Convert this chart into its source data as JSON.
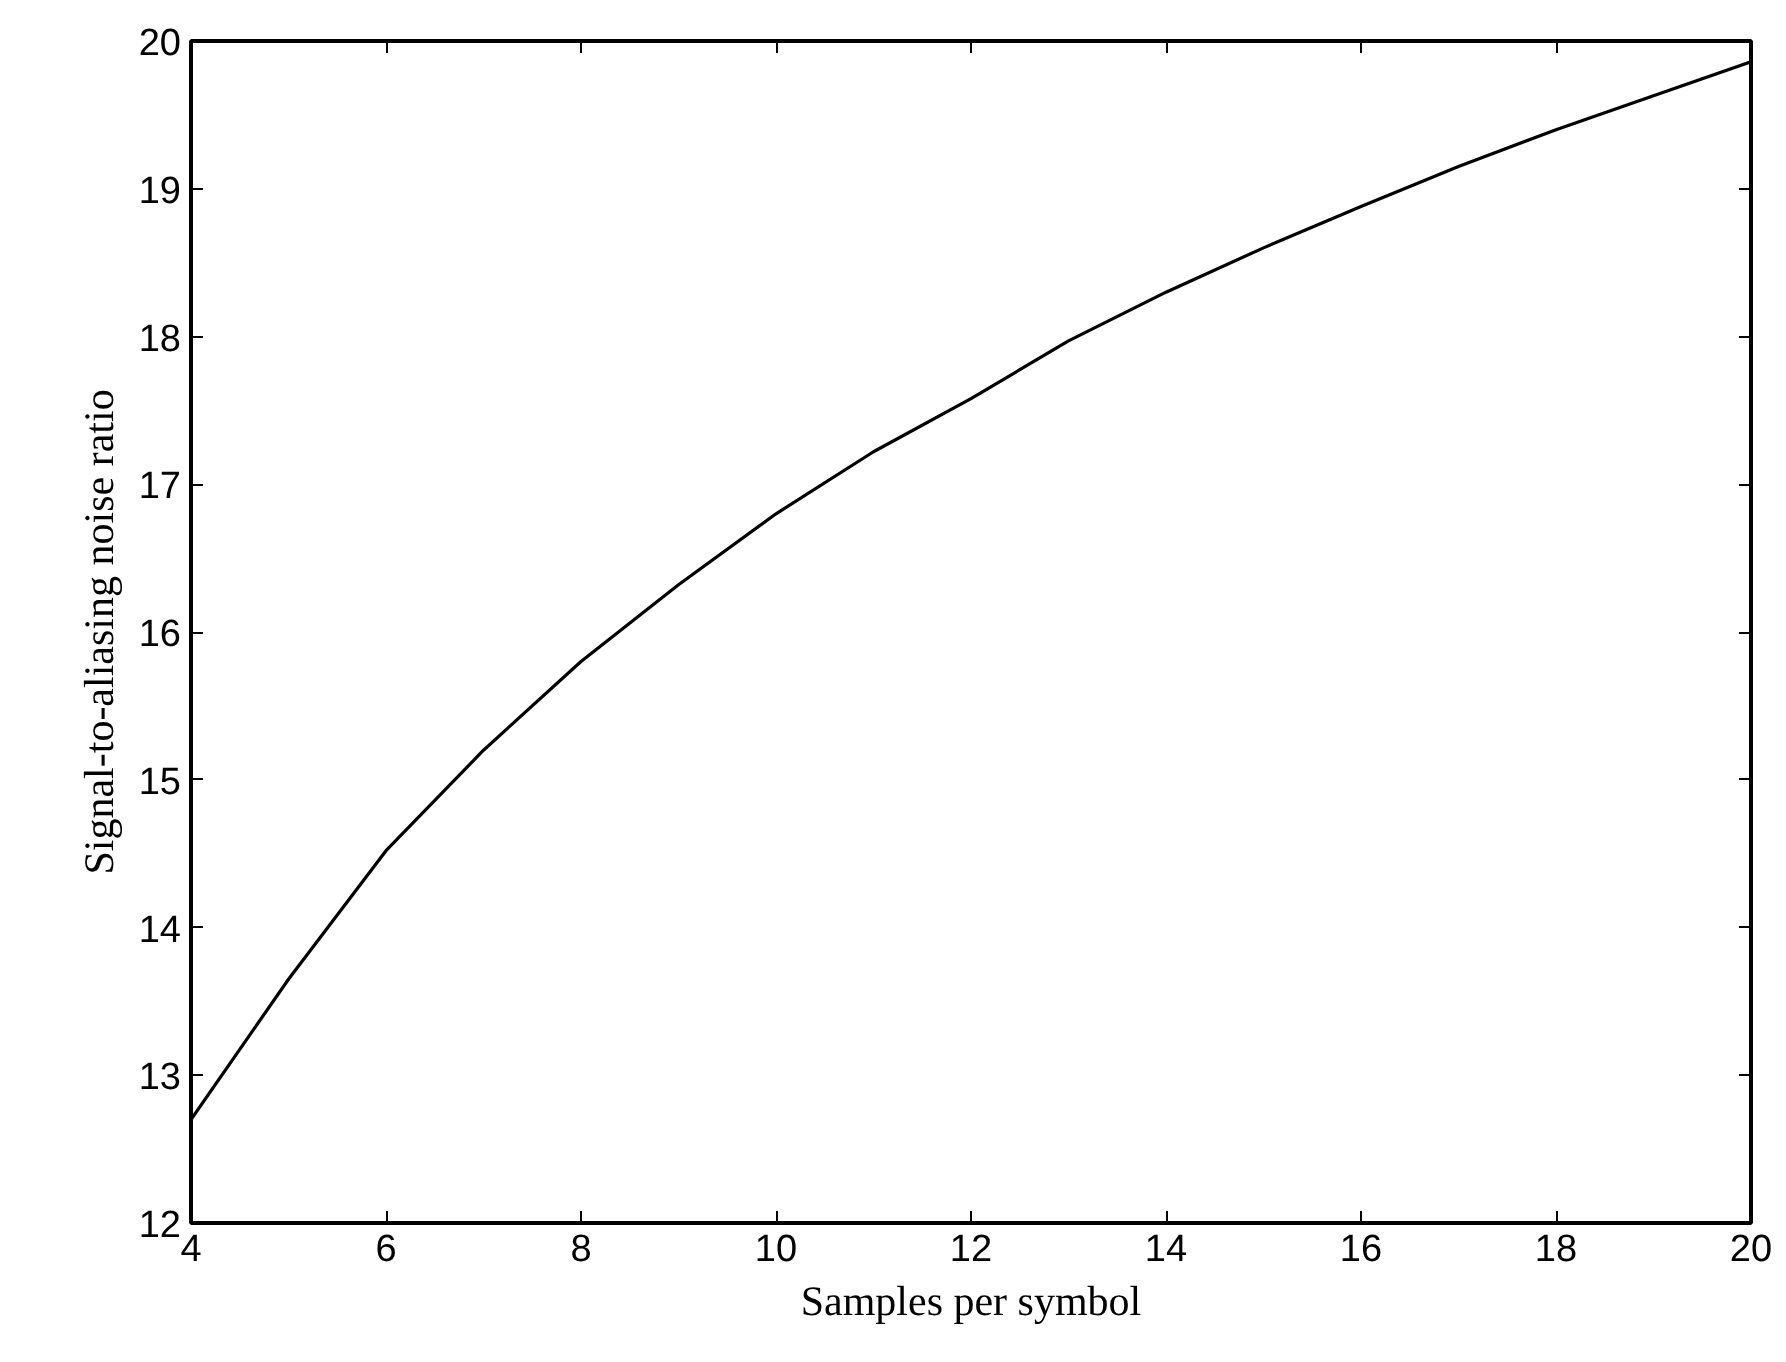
{
  "chart_data": {
    "type": "line",
    "xlabel": "Samples per symbol",
    "ylabel": "Signal-to-aliasing noise ratio",
    "x": [
      4,
      5,
      6,
      7,
      8,
      9,
      10,
      11,
      12,
      13,
      14,
      15,
      16,
      17,
      18,
      19,
      20
    ],
    "series": [
      {
        "color": "#000000",
        "values": [
          12.7,
          13.65,
          14.52,
          15.2,
          15.8,
          16.32,
          16.8,
          17.22,
          17.58,
          17.97,
          18.3,
          18.6,
          18.88,
          19.15,
          19.4,
          19.63,
          19.86
        ]
      }
    ],
    "xlim": [
      4,
      20
    ],
    "ylim": [
      12,
      20
    ],
    "xticks": [
      4,
      6,
      8,
      10,
      12,
      14,
      16,
      18,
      20
    ],
    "yticks": [
      12,
      13,
      14,
      15,
      16,
      17,
      18,
      19,
      20
    ],
    "grid": false,
    "marker": "none",
    "line_style": "solid"
  }
}
